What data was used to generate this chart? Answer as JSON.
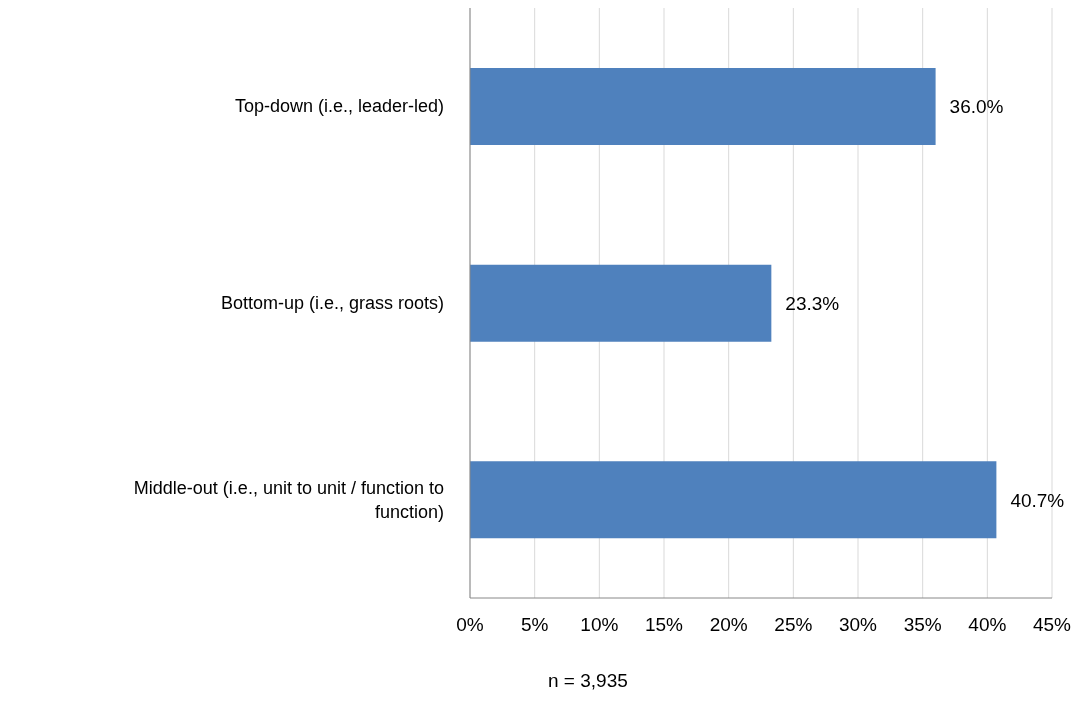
{
  "chart_data": {
    "type": "bar",
    "orientation": "horizontal",
    "categories": [
      "Top-down (i.e., leader-led)",
      "Bottom-up (i.e., grass roots)",
      "Middle-out (i.e., unit to unit / function to function)"
    ],
    "values": [
      36.0,
      23.3,
      40.7
    ],
    "value_labels": [
      "36.0%",
      "23.3%",
      "40.7%"
    ],
    "color": "#4f81bd",
    "xlim": [
      0,
      45
    ],
    "xticks": [
      {
        "value": 0,
        "label": "0%"
      },
      {
        "value": 5,
        "label": "5%"
      },
      {
        "value": 10,
        "label": "10%"
      },
      {
        "value": 15,
        "label": "15%"
      },
      {
        "value": 20,
        "label": "20%"
      },
      {
        "value": 25,
        "label": "25%"
      },
      {
        "value": 30,
        "label": "30%"
      },
      {
        "value": 35,
        "label": "35%"
      },
      {
        "value": 40,
        "label": "40%"
      },
      {
        "value": 45,
        "label": "45%"
      }
    ],
    "grid": "x",
    "legend": false,
    "annotations": [
      "n = 3,935"
    ]
  }
}
